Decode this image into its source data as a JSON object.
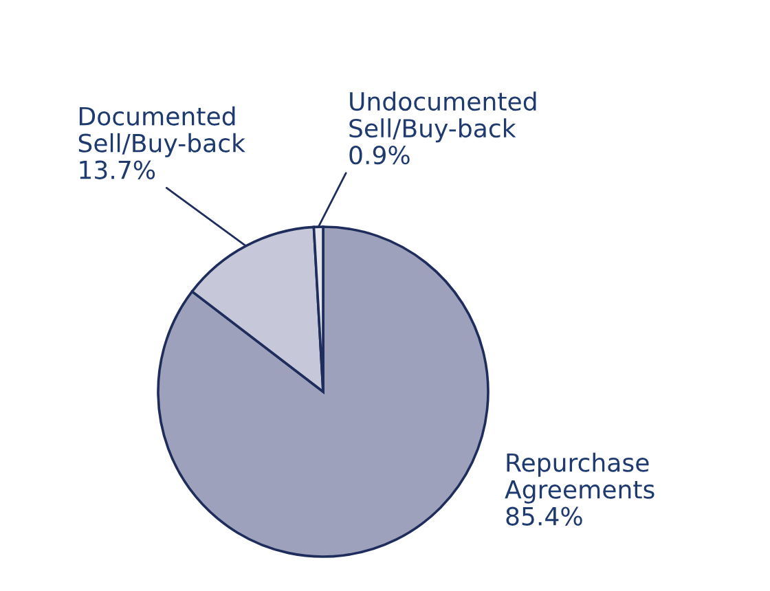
{
  "chart_data": {
    "type": "pie",
    "categories": [
      "Repurchase\nAgreements",
      "Documented\nSell/Buy-back",
      "Undocumented\nSell/Buy-back"
    ],
    "values": [
      85.4,
      13.7,
      0.9
    ],
    "value_labels": [
      "85.4%",
      "13.7%",
      "0.9%"
    ],
    "colors": [
      "#9ea1bc",
      "#c6c8d9",
      "#e3e4ec"
    ]
  }
}
